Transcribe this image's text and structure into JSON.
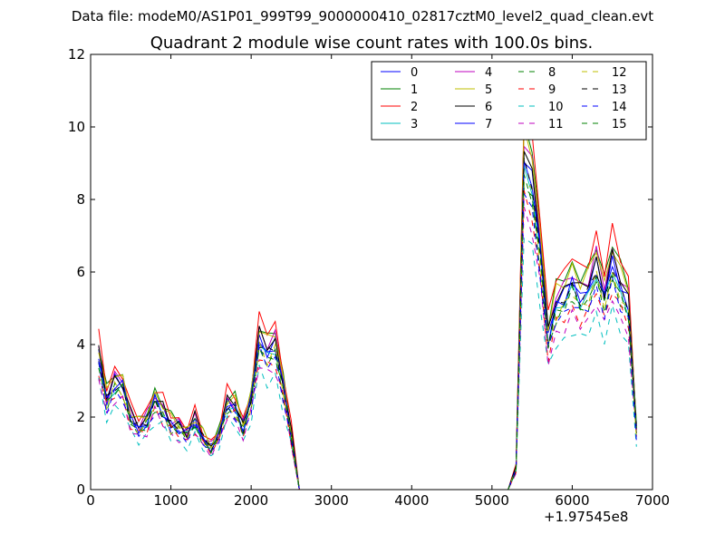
{
  "suptitle": "Data file: modeM0/AS1P01_999T99_9000000410_02817cztM0_level2_quad_clean.evt",
  "chart_data": {
    "type": "line",
    "title": "Quadrant 2 module wise count rates with 100.0s bins.",
    "xlabel": "",
    "ylabel": "",
    "x_offset_label": "+1.97545e8",
    "xlim": [
      0,
      7000
    ],
    "ylim": [
      0,
      12
    ],
    "xticks": [
      0,
      1000,
      2000,
      3000,
      4000,
      5000,
      6000,
      7000
    ],
    "yticks": [
      0,
      2,
      4,
      6,
      8,
      10,
      12
    ],
    "grid": false,
    "legend_position": "top-right",
    "x": [
      100,
      200,
      300,
      400,
      500,
      600,
      700,
      800,
      900,
      1000,
      1100,
      1200,
      1300,
      1400,
      1500,
      1600,
      1700,
      1800,
      1900,
      2000,
      2100,
      2200,
      2300,
      2400,
      2500,
      2600,
      2700,
      2800,
      2900,
      3000,
      3100,
      3200,
      3300,
      3400,
      3500,
      3600,
      3700,
      3800,
      3900,
      4000,
      4100,
      4200,
      4300,
      4400,
      4500,
      4600,
      4700,
      4800,
      4900,
      5000,
      5100,
      5200,
      5300,
      5400,
      5500,
      5600,
      5700,
      5800,
      5900,
      6000,
      6100,
      6200,
      6300,
      6400,
      6500,
      6600,
      6700,
      6800
    ],
    "base_series": [
      3.9,
      2.6,
      3.1,
      3.0,
      2.1,
      1.8,
      2.0,
      2.6,
      2.3,
      1.9,
      1.8,
      1.6,
      2.0,
      1.5,
      1.2,
      1.6,
      2.5,
      2.4,
      1.8,
      2.6,
      4.4,
      4.0,
      4.2,
      3.0,
      1.6,
      0.0,
      0.0,
      0.0,
      0.0,
      0.0,
      0.0,
      0.0,
      0.0,
      0.0,
      0.0,
      0.0,
      0.0,
      0.0,
      0.0,
      0.0,
      0.0,
      0.0,
      0.0,
      0.0,
      0.0,
      0.0,
      0.0,
      0.0,
      0.0,
      0.0,
      0.0,
      0.0,
      0.6,
      9.6,
      9.0,
      7.0,
      4.4,
      5.4,
      5.6,
      6.0,
      5.6,
      5.8,
      6.5,
      5.6,
      6.6,
      5.9,
      5.4,
      1.7
    ],
    "series": [
      {
        "name": "0",
        "color": "#0000ff",
        "style": "solid",
        "scale": 0.96
      },
      {
        "name": "1",
        "color": "#008000",
        "style": "solid",
        "scale": 1.04
      },
      {
        "name": "2",
        "color": "#ff0000",
        "style": "solid",
        "scale": 1.08
      },
      {
        "name": "3",
        "color": "#00bfbf",
        "style": "solid",
        "scale": 0.92
      },
      {
        "name": "4",
        "color": "#bf00bf",
        "style": "solid",
        "scale": 1.0
      },
      {
        "name": "5",
        "color": "#bfbf00",
        "style": "solid",
        "scale": 1.02
      },
      {
        "name": "6",
        "color": "#000000",
        "style": "solid",
        "scale": 0.98
      },
      {
        "name": "7",
        "color": "#0000ff",
        "style": "solid",
        "scale": 0.94
      },
      {
        "name": "8",
        "color": "#008000",
        "style": "dashed",
        "scale": 0.88
      },
      {
        "name": "9",
        "color": "#ff0000",
        "style": "dashed",
        "scale": 0.84
      },
      {
        "name": "10",
        "color": "#00bfbf",
        "style": "dashed",
        "scale": 0.74
      },
      {
        "name": "11",
        "color": "#bf00bf",
        "style": "dashed",
        "scale": 0.8
      },
      {
        "name": "12",
        "color": "#bfbf00",
        "style": "dashed",
        "scale": 0.9
      },
      {
        "name": "13",
        "color": "#000000",
        "style": "dashed",
        "scale": 0.93
      },
      {
        "name": "14",
        "color": "#0000ff",
        "style": "dashed",
        "scale": 0.86
      },
      {
        "name": "15",
        "color": "#008000",
        "style": "dashed",
        "scale": 0.9
      }
    ]
  }
}
